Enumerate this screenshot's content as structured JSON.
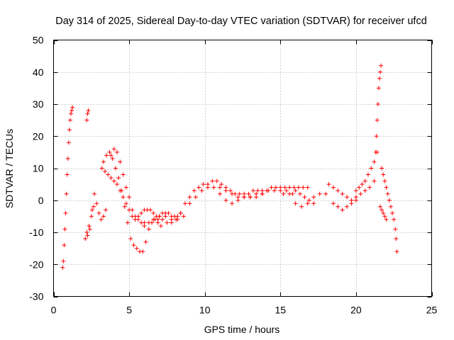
{
  "chart_data": {
    "type": "scatter",
    "title": "Day 314 of 2025, Sidereal Day-to-day VTEC variation (SDTVAR) for receiver ufcd",
    "xlabel": "GPS time / hours",
    "ylabel": "SDTVAR / TECUs",
    "xlim": [
      0,
      25
    ],
    "ylim": [
      -30,
      50
    ],
    "xticks": [
      0,
      5,
      10,
      15,
      20,
      25
    ],
    "yticks": [
      -30,
      -20,
      -10,
      0,
      10,
      20,
      30,
      40,
      50
    ],
    "grid": true,
    "marker": "+",
    "marker_color": "#ff0000",
    "series": [
      {
        "name": "SDTVAR",
        "x": [
          0.6,
          0.65,
          0.7,
          0.75,
          0.8,
          0.85,
          0.9,
          0.95,
          1.0,
          1.05,
          1.1,
          1.15,
          1.2,
          1.25,
          2.2,
          2.25,
          2.3,
          2.1,
          2.25,
          2.4,
          2.55,
          2.7,
          2.85,
          3.0,
          3.15,
          3.3,
          3.45,
          2.2,
          2.35,
          2.5,
          2.65,
          3.2,
          3.4,
          3.6,
          3.8,
          4.0,
          4.2,
          4.4,
          4.6,
          4.8,
          5.0,
          5.2,
          5.4,
          5.6,
          5.8,
          6.0,
          6.2,
          6.4,
          6.6,
          6.8,
          7.0,
          7.2,
          7.4,
          7.6,
          7.8,
          8.0,
          8.2,
          8.4,
          3.3,
          3.5,
          3.7,
          3.9,
          4.1,
          4.3,
          4.5,
          4.7,
          4.9,
          5.1,
          5.3,
          5.5,
          5.7,
          5.9,
          6.1,
          6.3,
          6.5,
          6.7,
          6.9,
          7.1,
          3.8,
          4.0,
          4.2,
          4.4,
          4.6,
          4.8,
          5.0,
          5.2,
          5.4,
          5.6,
          5.8,
          6.0,
          6.0,
          6.3,
          6.6,
          6.9,
          7.2,
          7.5,
          7.8,
          8.1,
          8.4,
          8.7,
          9.0,
          9.3,
          9.6,
          9.9,
          10.2,
          10.5,
          10.8,
          11.1,
          11.4,
          11.7,
          12.0,
          12.3,
          12.6,
          12.9,
          13.2,
          13.5,
          13.8,
          14.1,
          14.4,
          14.7,
          15.0,
          15.3,
          15.6,
          15.9,
          16.2,
          16.5,
          16.8,
          7.0,
          7.4,
          7.8,
          8.2,
          8.6,
          9.0,
          9.4,
          9.8,
          10.2,
          10.6,
          11.0,
          11.4,
          11.8,
          12.2,
          12.6,
          13.0,
          13.4,
          13.8,
          14.2,
          14.6,
          15.0,
          15.4,
          15.8,
          11.0,
          11.4,
          11.8,
          12.2,
          12.6,
          13.0,
          13.4,
          13.8,
          15.2,
          15.6,
          16.0,
          16.4,
          16.8,
          17.2,
          17.6,
          18.0,
          16.0,
          16.3,
          16.6,
          16.9,
          17.2,
          18.2,
          18.5,
          18.8,
          19.1,
          19.4,
          19.7,
          20.0,
          20.3,
          20.6,
          20.9,
          21.2,
          18.5,
          18.8,
          19.1,
          19.4,
          19.7,
          20.0,
          20.0,
          20.2,
          20.4,
          20.6,
          20.8,
          21.0,
          21.2,
          21.4,
          21.3,
          21.35,
          21.4,
          21.45,
          21.5,
          21.55,
          21.6,
          21.65,
          21.7,
          21.8,
          21.9,
          22.0,
          22.1,
          22.2,
          22.3,
          22.4,
          22.5,
          22.6,
          22.65,
          22.7,
          21.6,
          21.7,
          21.8,
          21.9,
          22.0
        ],
        "y": [
          -21,
          -19,
          -14,
          -9,
          -4,
          2,
          8,
          13,
          18,
          22,
          25,
          27,
          28,
          29,
          25,
          27,
          28,
          -12,
          -11,
          -9,
          -3,
          2,
          -1,
          -4,
          -6,
          -5,
          -3,
          -10,
          -8,
          -5,
          -2,
          10,
          9,
          8,
          7,
          6,
          5,
          3,
          1,
          -1,
          -3,
          -5,
          -6,
          -5,
          -4,
          -3,
          -3,
          -3,
          -4,
          -5,
          -5,
          -4,
          -4,
          -4,
          -5,
          -5,
          -5,
          -4,
          12,
          14,
          15,
          13,
          10,
          7,
          3,
          -2,
          -7,
          -12,
          -14,
          -15,
          -16,
          -16,
          -13,
          -9,
          -7,
          -6,
          -7,
          -8,
          14,
          16,
          15,
          12,
          8,
          4,
          1,
          -3,
          -5,
          -6,
          -7,
          -7,
          -8,
          -7,
          -6,
          -6,
          -6,
          -7,
          -7,
          -6,
          -4,
          -1,
          1,
          3,
          4,
          5,
          5,
          6,
          6,
          5,
          4,
          3,
          2,
          2,
          2,
          2,
          3,
          3,
          3,
          3,
          4,
          4,
          4,
          4,
          4,
          4,
          4,
          4,
          4,
          -5,
          -5,
          -6,
          -6,
          -5,
          -1,
          1,
          3,
          4,
          4,
          2,
          0,
          -1,
          0,
          1,
          1,
          2,
          2,
          3,
          3,
          3,
          3,
          2,
          4,
          3,
          2,
          1,
          1,
          1,
          1,
          2,
          2,
          2,
          -1,
          -2,
          -1,
          1,
          2,
          2,
          3,
          2,
          1,
          0,
          -1,
          5,
          4,
          3,
          2,
          1,
          0,
          1,
          2,
          3,
          4,
          6,
          -1,
          -2,
          -3,
          -2,
          -1,
          0,
          3,
          4,
          5,
          6,
          8,
          10,
          12,
          15,
          15,
          20,
          25,
          30,
          35,
          38,
          40,
          42,
          10,
          8,
          6,
          4,
          2,
          0,
          -2,
          -4,
          -6,
          -9,
          -12,
          -16,
          -2,
          -3,
          -4,
          -5,
          -6
        ]
      }
    ]
  }
}
